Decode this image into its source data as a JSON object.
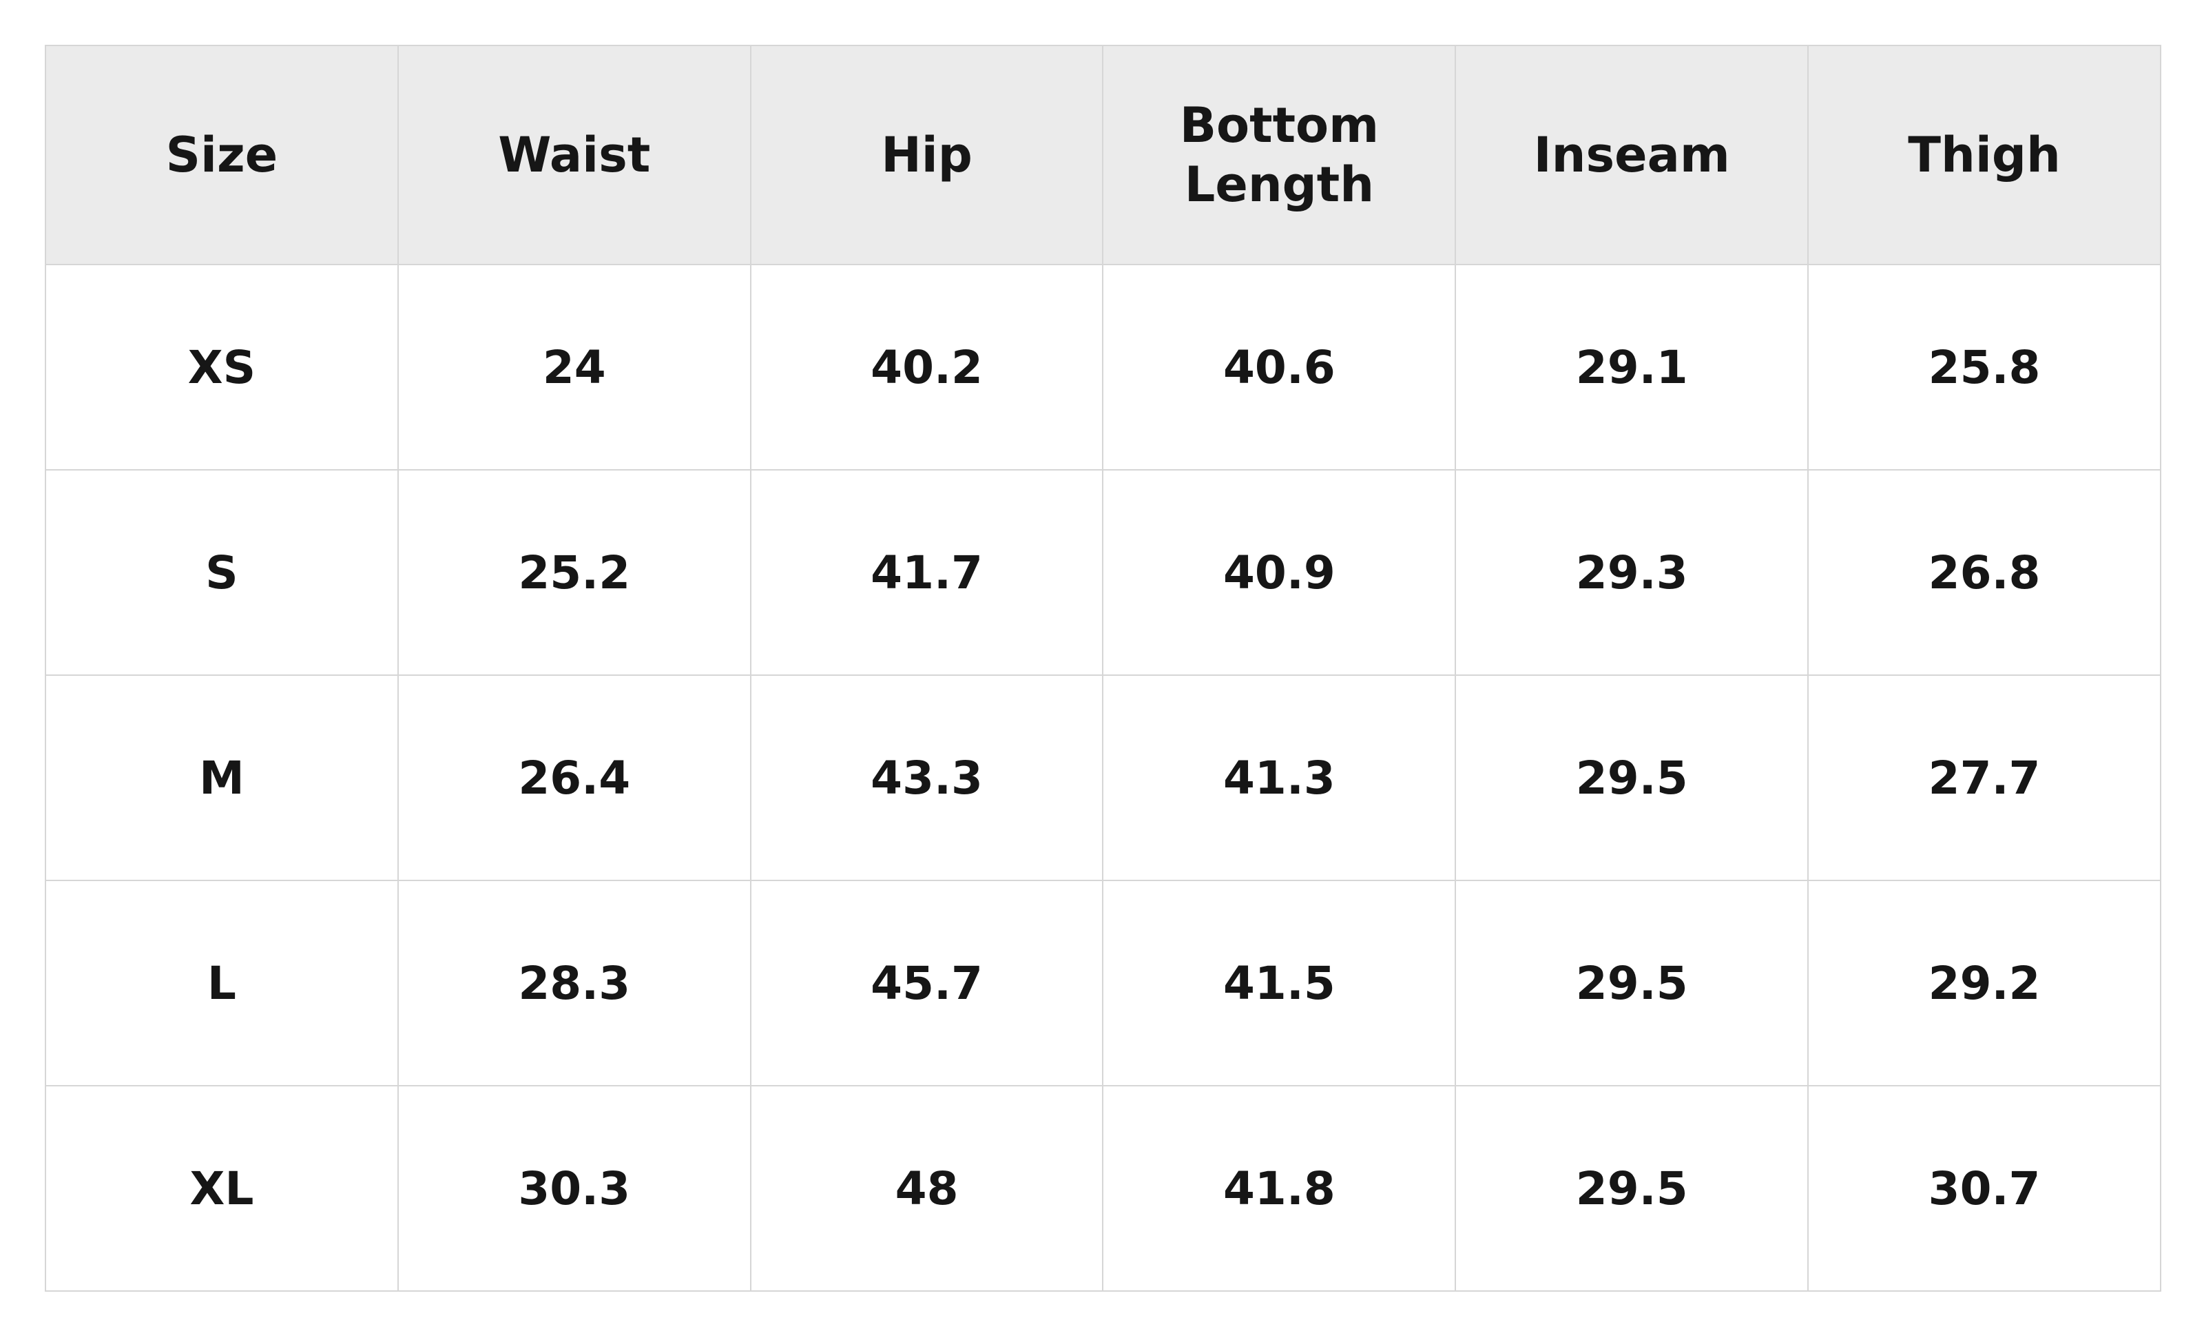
{
  "table": {
    "header": [
      "Size",
      "Waist",
      "Hip",
      "Bottom Length",
      "Inseam",
      "Thigh"
    ],
    "rows": [
      [
        "XS",
        "24",
        "40.2",
        "40.6",
        "29.1",
        "25.8"
      ],
      [
        "S",
        "25.2",
        "41.7",
        "40.9",
        "29.3",
        "26.8"
      ],
      [
        "M",
        "26.4",
        "43.3",
        "41.3",
        "29.5",
        "27.7"
      ],
      [
        "L",
        "28.3",
        "45.7",
        "41.5",
        "29.5",
        "29.2"
      ],
      [
        "XL",
        "30.3",
        "48",
        "41.8",
        "29.5",
        "30.7"
      ]
    ]
  }
}
